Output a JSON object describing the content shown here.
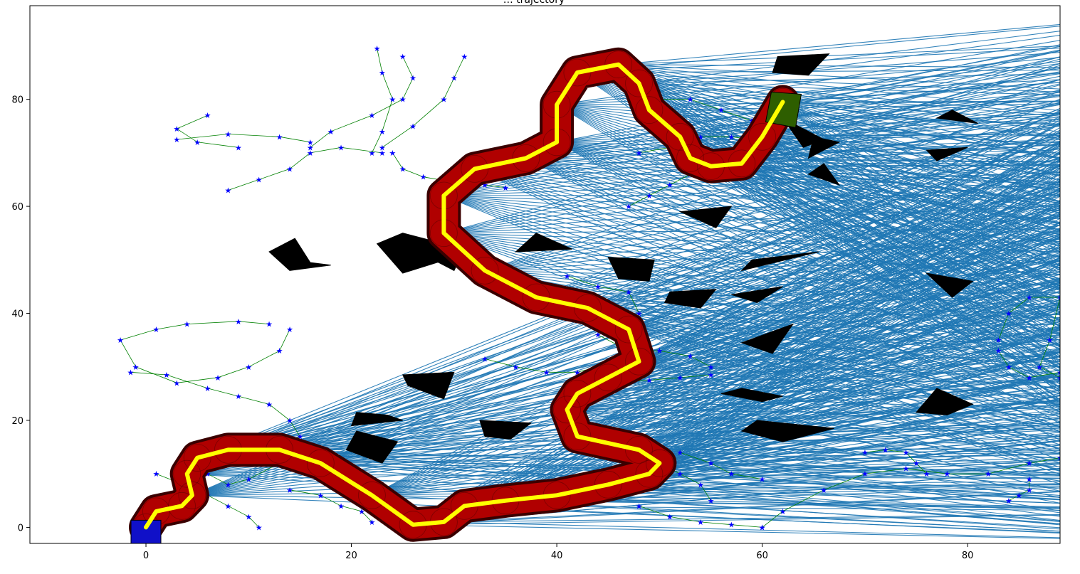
{
  "figure": {
    "title": "… trajectory",
    "axes_color": "#000000",
    "background": "#ffffff"
  },
  "chart_data": {
    "type": "scatter",
    "title": "… trajectory",
    "xlabel": "",
    "ylabel": "",
    "xlim": [
      -11.3,
      89.0
    ],
    "ylim": [
      -3.0,
      97.5
    ],
    "grid": false,
    "xticks": [
      0,
      20,
      40,
      60,
      80
    ],
    "yticks": [
      0,
      20,
      40,
      60,
      80
    ],
    "colors": {
      "rays": "#1f77b4",
      "obstacles": "#000000",
      "corridor": "#b00000",
      "corridor_edge": "#3a0000",
      "trajectory": "#ffff00",
      "tree_points": "#0000ff",
      "tree_edges": "#008000",
      "start": "#1010c8",
      "goal": "#2e5e00"
    },
    "start": {
      "x": 0,
      "y": 0
    },
    "goal": {
      "x": 62,
      "y": 79.5
    },
    "trajectory": [
      [
        0,
        0
      ],
      [
        1,
        3
      ],
      [
        3.5,
        4
      ],
      [
        4.5,
        6
      ],
      [
        4,
        10
      ],
      [
        5,
        13
      ],
      [
        8,
        14.5
      ],
      [
        13,
        14.5
      ],
      [
        17,
        12
      ],
      [
        22,
        6
      ],
      [
        26,
        0.5
      ],
      [
        29,
        1
      ],
      [
        31,
        4
      ],
      [
        35,
        5
      ],
      [
        40,
        6
      ],
      [
        45,
        8
      ],
      [
        49,
        10
      ],
      [
        50,
        12
      ],
      [
        48,
        14.5
      ],
      [
        42,
        17
      ],
      [
        41,
        22
      ],
      [
        42,
        25
      ],
      [
        45,
        28
      ],
      [
        48,
        31
      ],
      [
        47,
        37
      ],
      [
        43,
        41
      ],
      [
        38,
        43
      ],
      [
        33,
        48
      ],
      [
        29,
        55
      ],
      [
        29,
        62
      ],
      [
        32,
        67
      ],
      [
        37,
        69
      ],
      [
        40,
        72
      ],
      [
        40,
        79
      ],
      [
        42,
        85
      ],
      [
        46,
        86.5
      ],
      [
        48,
        83
      ],
      [
        49,
        78
      ],
      [
        52,
        73
      ],
      [
        53,
        69
      ],
      [
        55,
        67.5
      ],
      [
        58,
        68
      ],
      [
        60,
        73
      ],
      [
        62,
        79.5
      ]
    ],
    "obstacles": [
      [
        [
          12,
          51.5
        ],
        [
          14.5,
          54
        ],
        [
          16,
          49.5
        ],
        [
          18,
          49
        ],
        [
          14,
          48
        ]
      ],
      [
        [
          22.5,
          53
        ],
        [
          25,
          55
        ],
        [
          29,
          53
        ],
        [
          30,
          50.5
        ],
        [
          25,
          47.5
        ]
      ],
      [
        [
          26.5,
          54
        ],
        [
          31,
          52
        ],
        [
          30,
          48
        ],
        [
          28,
          50
        ]
      ],
      [
        [
          25,
          28.5
        ],
        [
          30,
          29
        ],
        [
          29,
          24
        ],
        [
          25.5,
          26.5
        ]
      ],
      [
        [
          20.5,
          21.5
        ],
        [
          23.5,
          21
        ],
        [
          25,
          20
        ],
        [
          20,
          19
        ]
      ],
      [
        [
          20.5,
          18
        ],
        [
          24.5,
          16
        ],
        [
          23,
          12
        ],
        [
          19.5,
          14.5
        ]
      ],
      [
        [
          32.5,
          20
        ],
        [
          37.5,
          19.5
        ],
        [
          35.5,
          16.5
        ],
        [
          33,
          17
        ]
      ],
      [
        [
          38,
          55
        ],
        [
          41.5,
          52
        ],
        [
          36,
          51.5
        ]
      ],
      [
        [
          45,
          50.5
        ],
        [
          49.5,
          50
        ],
        [
          49,
          46
        ],
        [
          46,
          46.5
        ]
      ],
      [
        [
          51,
          44
        ],
        [
          55.5,
          44.5
        ],
        [
          54,
          41
        ],
        [
          50.5,
          42
        ]
      ],
      [
        [
          52,
          59
        ],
        [
          57,
          60
        ],
        [
          55.5,
          56
        ]
      ],
      [
        [
          58,
          48
        ],
        [
          65.5,
          51.5
        ],
        [
          59,
          50
        ]
      ],
      [
        [
          57,
          43.5
        ],
        [
          62,
          45
        ],
        [
          59.5,
          42
        ]
      ],
      [
        [
          58,
          34.5
        ],
        [
          63,
          38
        ],
        [
          61,
          32.5
        ]
      ],
      [
        [
          58,
          26
        ],
        [
          62,
          24.5
        ],
        [
          60,
          23.5
        ],
        [
          56,
          25
        ]
      ],
      [
        [
          59.5,
          20
        ],
        [
          67,
          18.5
        ],
        [
          62,
          16
        ],
        [
          58,
          18
        ]
      ],
      [
        [
          61.5,
          88
        ],
        [
          66.5,
          88.5
        ],
        [
          64.5,
          84.5
        ],
        [
          61,
          85
        ]
      ],
      [
        [
          62,
          76.5
        ],
        [
          66,
          72.5
        ],
        [
          64,
          71
        ]
      ],
      [
        [
          64.5,
          69
        ],
        [
          67.5,
          72
        ],
        [
          65,
          73
        ]
      ],
      [
        [
          64.5,
          66
        ],
        [
          67.5,
          64
        ],
        [
          66,
          68
        ]
      ],
      [
        [
          76,
          70.5
        ],
        [
          80,
          71
        ],
        [
          77,
          68.5
        ]
      ],
      [
        [
          77,
          76.5
        ],
        [
          81,
          75.5
        ],
        [
          78.5,
          78
        ]
      ],
      [
        [
          76,
          47.5
        ],
        [
          80.5,
          46
        ],
        [
          78.5,
          43
        ]
      ],
      [
        [
          77,
          26
        ],
        [
          80.5,
          23
        ],
        [
          78,
          21
        ],
        [
          75,
          21.5
        ]
      ]
    ],
    "tree_branches": [
      [
        [
          9,
          71
        ],
        [
          5,
          72
        ],
        [
          3,
          74.5
        ],
        [
          6,
          77
        ]
      ],
      [
        [
          16,
          72
        ],
        [
          13,
          73
        ],
        [
          8,
          73.5
        ],
        [
          3,
          72.5
        ]
      ],
      [
        [
          16,
          71
        ],
        [
          18,
          74
        ],
        [
          22,
          77
        ],
        [
          25,
          80
        ],
        [
          26,
          84
        ],
        [
          25,
          88
        ]
      ],
      [
        [
          22,
          70
        ],
        [
          23,
          74
        ],
        [
          24,
          80
        ],
        [
          23,
          85
        ],
        [
          22.5,
          89.5
        ]
      ],
      [
        [
          23,
          71
        ],
        [
          26,
          75
        ],
        [
          29,
          80
        ],
        [
          30,
          84
        ],
        [
          31,
          88
        ]
      ],
      [
        [
          24,
          70
        ],
        [
          25,
          67
        ],
        [
          27,
          65.5
        ],
        [
          30,
          64.5
        ],
        [
          33,
          64
        ],
        [
          35,
          63.5
        ]
      ],
      [
        [
          8,
          63
        ],
        [
          11,
          65
        ],
        [
          14,
          67
        ],
        [
          16,
          70
        ],
        [
          19,
          71
        ],
        [
          23,
          70
        ]
      ],
      [
        [
          12,
          38
        ],
        [
          9,
          38.5
        ],
        [
          4,
          38
        ],
        [
          1,
          37
        ],
        [
          -2.5,
          35
        ],
        [
          -1,
          30
        ],
        [
          3,
          27
        ],
        [
          7,
          28
        ],
        [
          10,
          30
        ],
        [
          13,
          33
        ],
        [
          14,
          37
        ]
      ],
      [
        [
          -1.5,
          29
        ],
        [
          2,
          28.5
        ],
        [
          6,
          26
        ],
        [
          9,
          24.5
        ],
        [
          12,
          23
        ],
        [
          14,
          20
        ],
        [
          15,
          17
        ],
        [
          13,
          15
        ]
      ],
      [
        [
          1,
          10
        ],
        [
          3,
          8.5
        ],
        [
          6,
          6
        ],
        [
          8,
          4
        ],
        [
          10,
          2
        ],
        [
          11,
          0
        ]
      ],
      [
        [
          3,
          12
        ],
        [
          6,
          10
        ],
        [
          8,
          8
        ],
        [
          10,
          9
        ],
        [
          13,
          12
        ],
        [
          15,
          14
        ]
      ],
      [
        [
          14,
          7
        ],
        [
          17,
          6
        ],
        [
          19,
          4
        ],
        [
          21,
          3
        ],
        [
          22,
          1
        ]
      ],
      [
        [
          33,
          31.5
        ],
        [
          36,
          30
        ],
        [
          39,
          29
        ],
        [
          42,
          29
        ],
        [
          44,
          30
        ]
      ],
      [
        [
          42,
          27
        ],
        [
          45,
          27
        ],
        [
          49,
          27.5
        ],
        [
          52,
          28
        ],
        [
          55,
          28.5
        ]
      ],
      [
        [
          41,
          47
        ],
        [
          44,
          45
        ],
        [
          47,
          44
        ],
        [
          48,
          40
        ],
        [
          48,
          38
        ]
      ],
      [
        [
          44,
          36
        ],
        [
          47,
          33
        ],
        [
          50,
          33
        ],
        [
          53,
          32
        ],
        [
          55,
          30
        ]
      ],
      [
        [
          50,
          80
        ],
        [
          53,
          80
        ],
        [
          56,
          78
        ],
        [
          59,
          76
        ],
        [
          60,
          73
        ]
      ],
      [
        [
          48,
          70
        ],
        [
          51,
          71
        ],
        [
          54,
          73
        ],
        [
          57,
          73
        ],
        [
          61,
          72
        ]
      ],
      [
        [
          47,
          60
        ],
        [
          49,
          62
        ],
        [
          51,
          64
        ],
        [
          53,
          66
        ]
      ],
      [
        [
          50,
          12
        ],
        [
          52,
          10
        ],
        [
          54,
          8
        ],
        [
          55,
          5
        ]
      ],
      [
        [
          48,
          4
        ],
        [
          51,
          2
        ],
        [
          54,
          1
        ],
        [
          57,
          0.5
        ],
        [
          60,
          0
        ]
      ],
      [
        [
          52,
          14
        ],
        [
          55,
          12
        ],
        [
          57,
          10
        ],
        [
          60,
          9
        ]
      ],
      [
        [
          60,
          0
        ],
        [
          62,
          3
        ],
        [
          66,
          7
        ],
        [
          70,
          10
        ],
        [
          74,
          11
        ],
        [
          78,
          10
        ],
        [
          82,
          10
        ],
        [
          86,
          12
        ],
        [
          89,
          13
        ]
      ],
      [
        [
          70,
          14
        ],
        [
          72,
          14.5
        ],
        [
          74,
          14
        ],
        [
          75,
          12
        ],
        [
          76,
          10
        ]
      ],
      [
        [
          84,
          5
        ],
        [
          85,
          6
        ],
        [
          86,
          7
        ],
        [
          86,
          9
        ]
      ],
      [
        [
          83,
          35
        ],
        [
          84,
          40
        ],
        [
          86,
          43
        ],
        [
          89,
          43
        ],
        [
          88,
          35
        ],
        [
          87,
          30
        ],
        [
          89,
          28
        ]
      ],
      [
        [
          83,
          33
        ],
        [
          84,
          30
        ],
        [
          86,
          28
        ],
        [
          89,
          29
        ]
      ]
    ]
  }
}
